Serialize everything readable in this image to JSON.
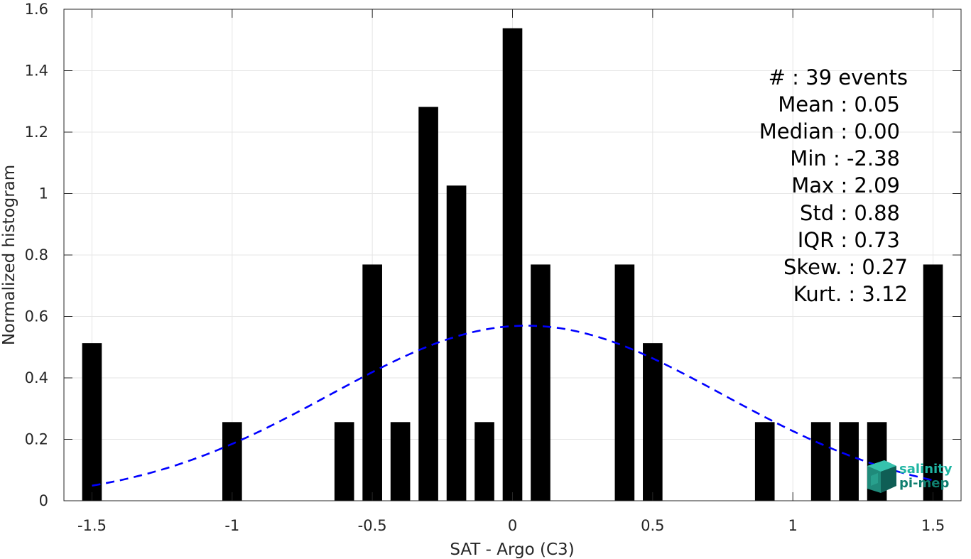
{
  "chart_data": {
    "type": "bar",
    "xlabel": "SAT - Argo (C3)",
    "ylabel": "Normalized histogram",
    "xlim": [
      -1.6,
      1.6
    ],
    "ylim": [
      0,
      1.6
    ],
    "grid": true,
    "x_ticks": [
      -1.5,
      -1,
      -0.5,
      0,
      0.5,
      1,
      1.5
    ],
    "x_tick_labels": [
      "-1.5",
      "-1",
      "-0.5",
      "0",
      "0.5",
      "1",
      "1.5"
    ],
    "y_ticks": [
      0,
      0.2,
      0.4,
      0.6,
      0.8,
      1,
      1.2,
      1.4,
      1.6
    ],
    "y_tick_labels": [
      "0",
      "0.2",
      "0.4",
      "0.6",
      "0.8",
      "1",
      "1.2",
      "1.4",
      "1.6"
    ],
    "bin_width": 0.1,
    "x": [
      -1.5,
      -1.0,
      -0.6,
      -0.5,
      -0.4,
      -0.3,
      -0.2,
      -0.1,
      0.0,
      0.1,
      0.4,
      0.5,
      0.9,
      1.1,
      1.2,
      1.3,
      1.5
    ],
    "values": [
      0.513,
      0.256,
      0.256,
      0.769,
      0.256,
      1.282,
      1.026,
      0.256,
      1.538,
      0.769,
      0.769,
      0.513,
      0.256,
      0.256,
      0.256,
      0.256,
      0.769
    ],
    "bar_color": "#000000",
    "fit_curve": {
      "type": "normal",
      "mean": 0.05,
      "std": 0.7,
      "x_range": [
        -1.5,
        1.5
      ],
      "color": "#0000ff",
      "style": "dashed"
    },
    "stats": [
      "#  : 39 events",
      "Mean : 0.05",
      "Median : 0.00",
      "Min : -2.38",
      "Max : 2.09",
      "Std : 0.88",
      "IQR : 0.73",
      "Skew. : 0.27",
      "Kurt. : 3.12"
    ]
  },
  "logo": {
    "line1": "salinity",
    "line2": "pi-mep"
  }
}
